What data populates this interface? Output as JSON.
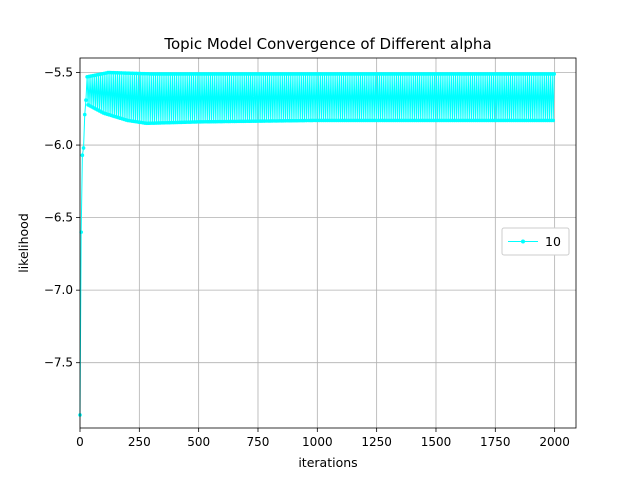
{
  "chart_data": {
    "type": "line",
    "title": "Topic Model Convergence of Different alpha",
    "xlabel": "iterations",
    "ylabel": "likelihood",
    "xlim": [
      0,
      2090
    ],
    "ylim": [
      -7.95,
      -5.4
    ],
    "xticks": [
      0,
      250,
      500,
      750,
      1000,
      1250,
      1500,
      1750,
      2000
    ],
    "xtick_labels": [
      "0",
      "250",
      "500",
      "750",
      "1000",
      "1250",
      "1500",
      "1750",
      "2000"
    ],
    "yticks": [
      -7.5,
      -7.0,
      -6.5,
      -6.0,
      -5.5
    ],
    "ytick_labels": [
      "−7.5",
      "−7.0",
      "−6.5",
      "−6.0",
      "−5.5"
    ],
    "grid": true,
    "legend_position": "center-right",
    "series": [
      {
        "name": "10",
        "color": "#00ffff",
        "marker": "dot",
        "style": "oscillating",
        "start": [
          [
            0,
            -7.86
          ],
          [
            5,
            -6.6
          ],
          [
            10,
            -6.07
          ],
          [
            15,
            -6.02
          ],
          [
            20,
            -5.79
          ],
          [
            25,
            -5.69
          ]
        ],
        "upper": [
          [
            30,
            -5.53
          ],
          [
            120,
            -5.5
          ],
          [
            300,
            -5.51
          ],
          [
            1000,
            -5.51
          ],
          [
            2000,
            -5.51
          ]
        ],
        "lower": [
          [
            30,
            -5.72
          ],
          [
            100,
            -5.78
          ],
          [
            200,
            -5.83
          ],
          [
            280,
            -5.85
          ],
          [
            500,
            -5.84
          ],
          [
            1000,
            -5.83
          ],
          [
            2000,
            -5.83
          ]
        ],
        "x_end": 2000,
        "step": 8
      }
    ]
  },
  "legend": {
    "entries": [
      "10"
    ]
  }
}
